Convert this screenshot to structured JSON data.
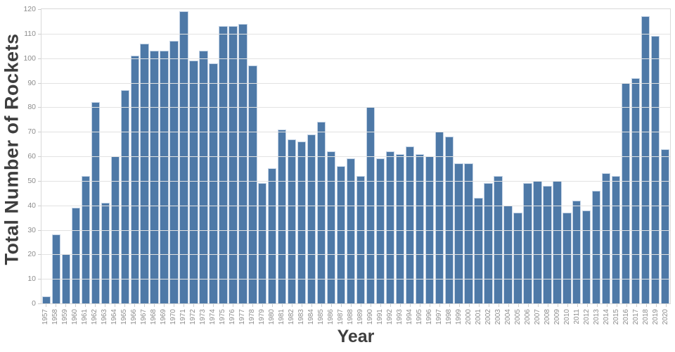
{
  "axes": {
    "y_title": "Total Number of Rockets",
    "x_title": "Year"
  },
  "colors": {
    "bar_fill": "#4e79a7",
    "bar_edge": "#c2d2e5",
    "gridline": "#e2e2e2",
    "axis_border": "#d9d9d9",
    "tick_label": "#8c8c8c",
    "axis_title": "#3e3e3e",
    "background": "#ffffff"
  },
  "chart_data": {
    "type": "bar",
    "title": "",
    "xlabel": "Year",
    "ylabel": "Total Number of Rockets",
    "ylim": [
      0,
      120
    ],
    "yticks": [
      0,
      10,
      20,
      30,
      40,
      50,
      60,
      70,
      80,
      90,
      100,
      110,
      120
    ],
    "grid": true,
    "legend": "none",
    "categories": [
      "1957",
      "1958",
      "1959",
      "1960",
      "1961",
      "1962",
      "1963",
      "1964",
      "1965",
      "1966",
      "1967",
      "1968",
      "1969",
      "1970",
      "1971",
      "1972",
      "1973",
      "1974",
      "1975",
      "1976",
      "1977",
      "1978",
      "1979",
      "1980",
      "1981",
      "1982",
      "1983",
      "1984",
      "1985",
      "1986",
      "1987",
      "1988",
      "1989",
      "1990",
      "1991",
      "1992",
      "1993",
      "1994",
      "1995",
      "1996",
      "1997",
      "1998",
      "1999",
      "2000",
      "2001",
      "2002",
      "2003",
      "2004",
      "2005",
      "2006",
      "2007",
      "2008",
      "2009",
      "2010",
      "2011",
      "2012",
      "2013",
      "2014",
      "2015",
      "2016",
      "2017",
      "2018",
      "2019",
      "2020"
    ],
    "values": [
      3,
      28,
      20,
      39,
      52,
      82,
      41,
      60,
      87,
      101,
      106,
      103,
      103,
      107,
      119,
      99,
      103,
      98,
      113,
      113,
      114,
      97,
      49,
      55,
      71,
      67,
      66,
      69,
      74,
      62,
      56,
      59,
      52,
      80,
      59,
      62,
      61,
      64,
      61,
      60,
      70,
      68,
      57,
      57,
      43,
      49,
      52,
      40,
      37,
      49,
      50,
      48,
      50,
      37,
      42,
      38,
      46,
      53,
      52,
      90,
      92,
      117,
      109,
      63
    ]
  }
}
